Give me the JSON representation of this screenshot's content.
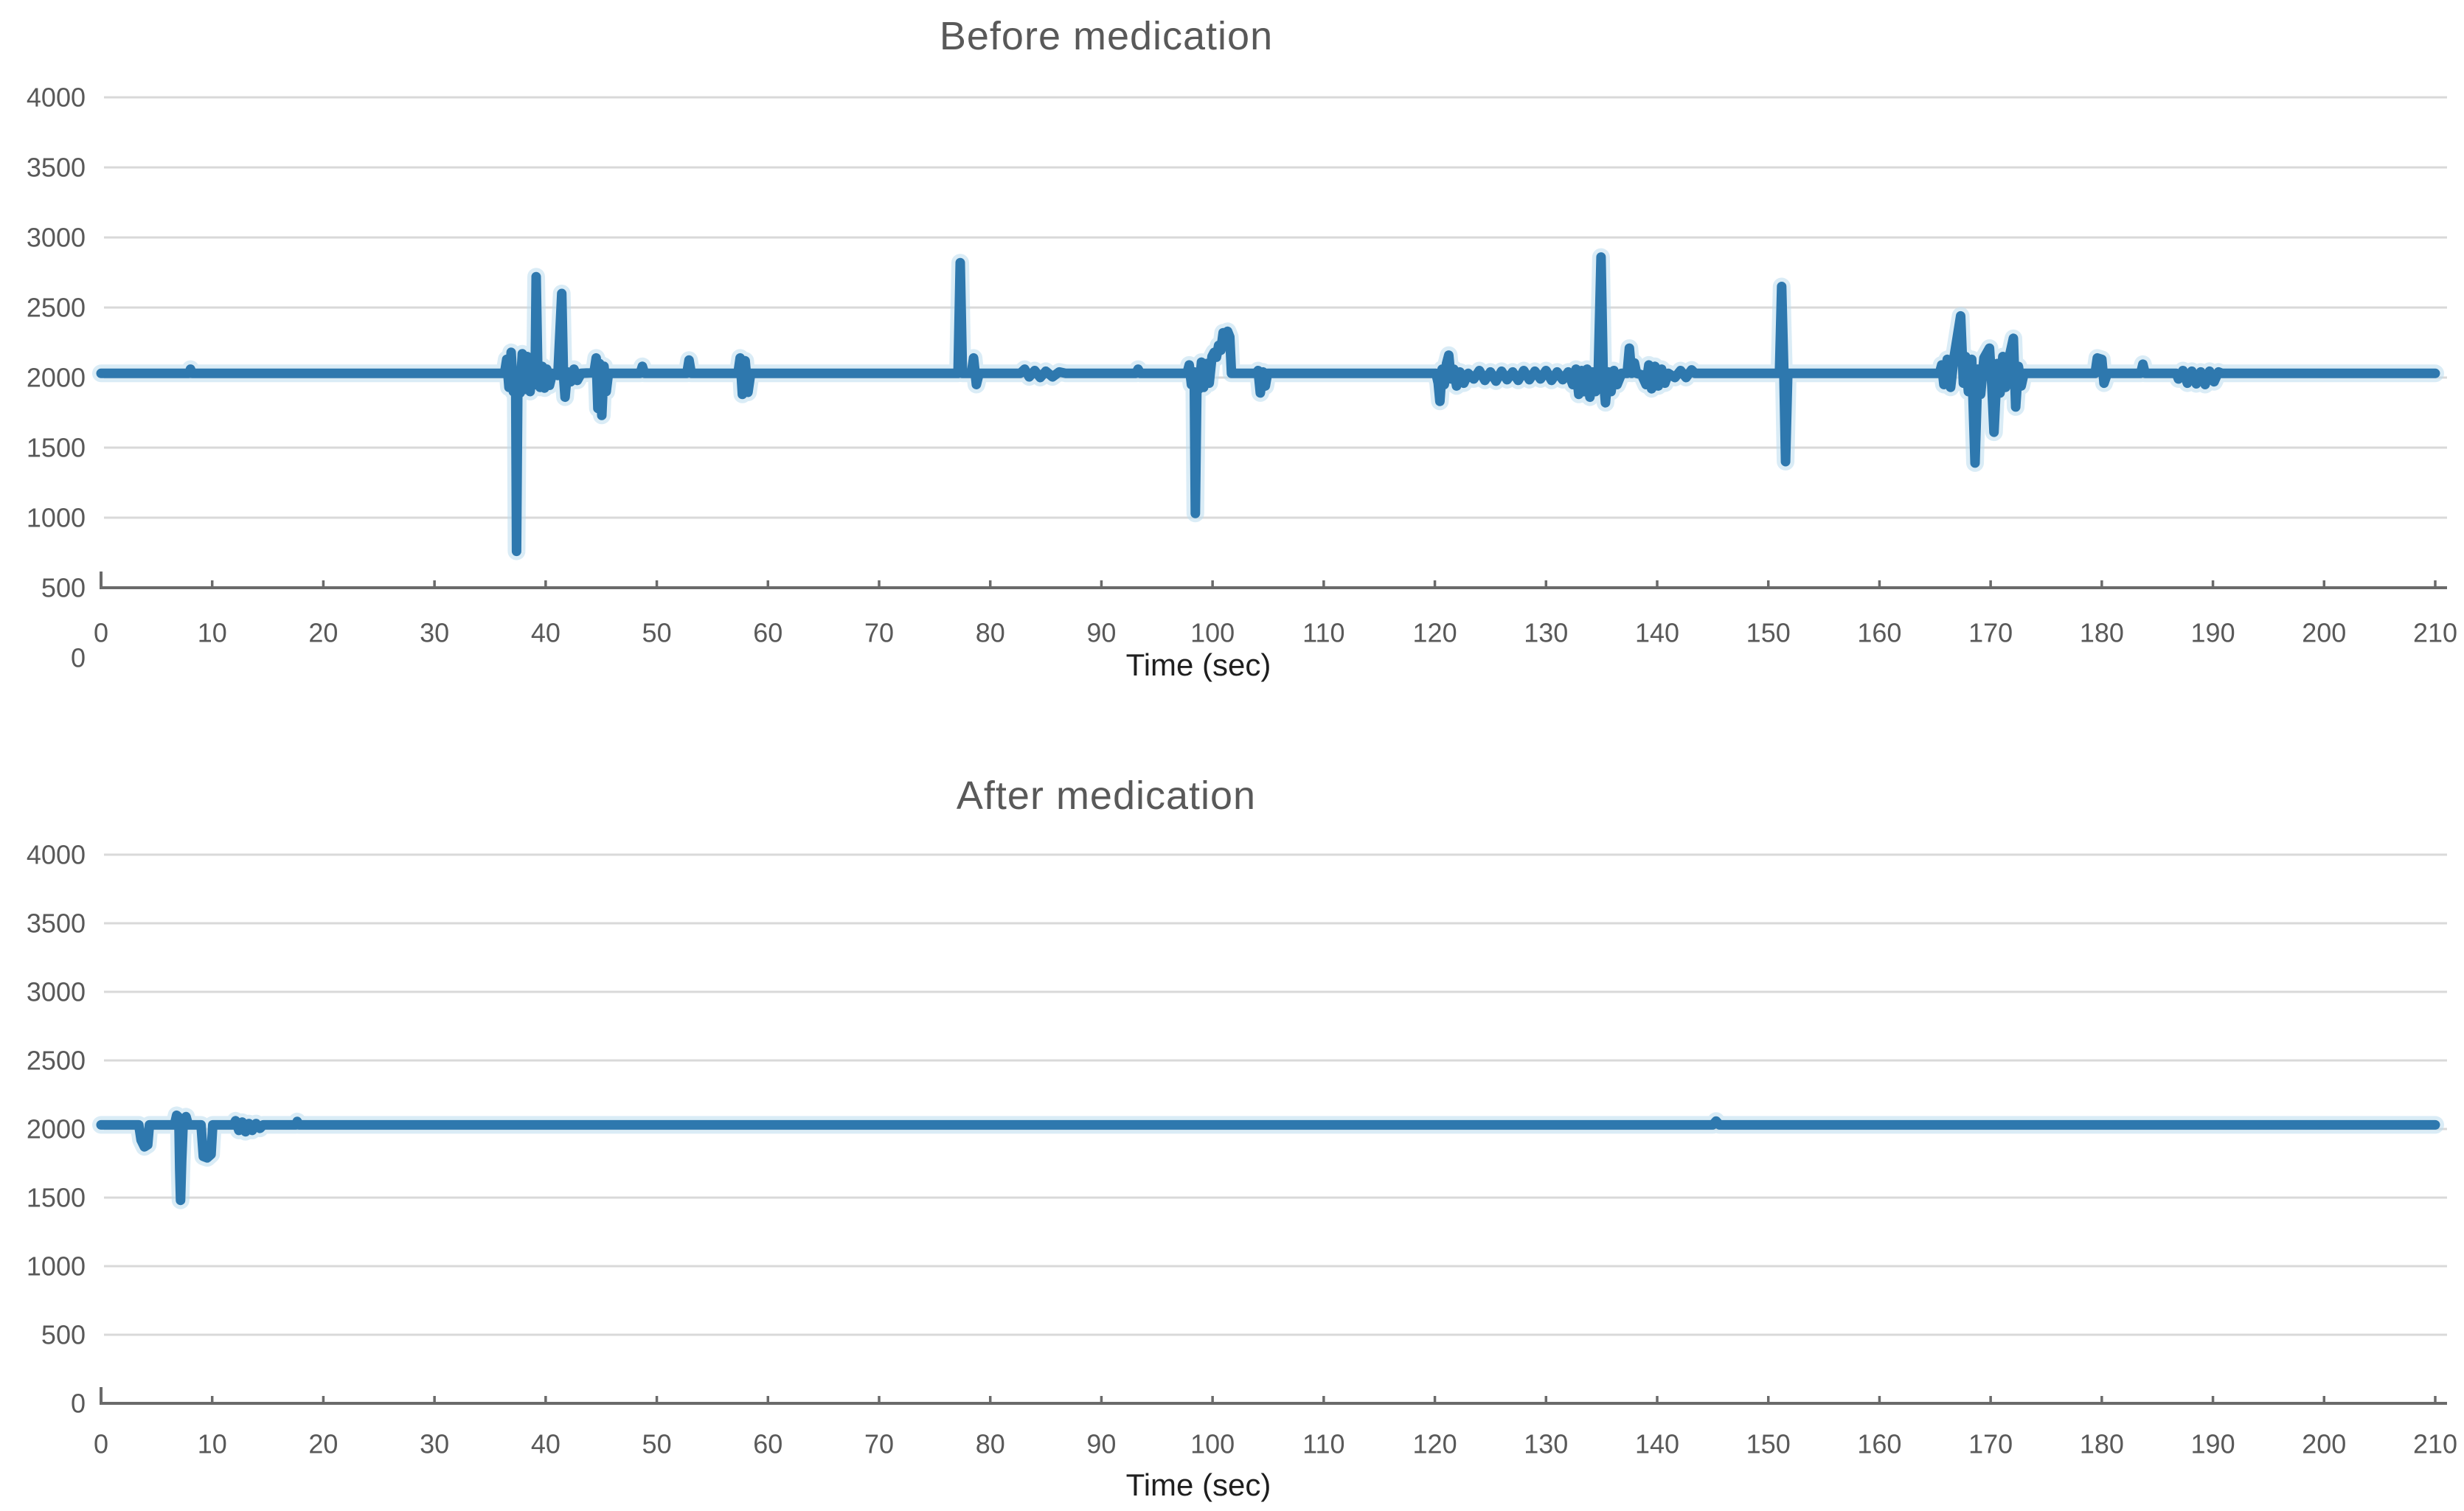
{
  "page": {
    "background": "#ffffff"
  },
  "styles": {
    "line_color": "#2e78ae",
    "line_halo_color": "#bcdcee",
    "gridline_color": "#d9d9d9",
    "axis_color": "#6a6a6a",
    "tick_label_color": "#595959",
    "title_color": "#595959",
    "time_label_color": "#1f1f1f"
  },
  "chart_data": [
    {
      "type": "line",
      "title": "Before medication",
      "xlabel": "Time (sec)",
      "ylabel": "",
      "xlim": [
        0,
        210
      ],
      "ylim": [
        0,
        4000
      ],
      "x_ticks": [
        0,
        10,
        20,
        30,
        40,
        50,
        60,
        70,
        80,
        90,
        100,
        110,
        120,
        130,
        140,
        150,
        160,
        170,
        180,
        190,
        200,
        210
      ],
      "y_ticks": [
        0,
        500,
        1000,
        1500,
        2000,
        2500,
        3000,
        3500,
        4000
      ],
      "axis_crosses_at": 500,
      "grid": true,
      "legend": "none",
      "baseline_value": 2030,
      "series": [
        {
          "name": "signal",
          "points": [
            [
              0,
              2030
            ],
            [
              7.9,
              2030
            ],
            [
              8.05,
              2060
            ],
            [
              8.2,
              2030
            ],
            [
              36.3,
              2030
            ],
            [
              36.5,
              2130
            ],
            [
              36.7,
              1930
            ],
            [
              36.9,
              2180
            ],
            [
              37.1,
              1900
            ],
            [
              37.3,
              2040
            ],
            [
              37.38,
              760
            ],
            [
              37.5,
              1990
            ],
            [
              37.7,
              1890
            ],
            [
              37.9,
              2170
            ],
            [
              38.1,
              1915
            ],
            [
              38.35,
              2150
            ],
            [
              38.6,
              1900
            ],
            [
              38.85,
              2120
            ],
            [
              39.05,
              1950
            ],
            [
              39.15,
              2720
            ],
            [
              39.3,
              2020
            ],
            [
              39.5,
              1930
            ],
            [
              39.7,
              2080
            ],
            [
              39.9,
              1925
            ],
            [
              40.1,
              2060
            ],
            [
              40.35,
              1945
            ],
            [
              40.6,
              2030
            ],
            [
              41.1,
              2015
            ],
            [
              41.45,
              2600
            ],
            [
              41.6,
              2020
            ],
            [
              41.75,
              1860
            ],
            [
              41.95,
              2040
            ],
            [
              42.25,
              1970
            ],
            [
              42.55,
              2060
            ],
            [
              42.85,
              1980
            ],
            [
              43.2,
              2030
            ],
            [
              44.35,
              2035
            ],
            [
              44.55,
              2140
            ],
            [
              44.7,
              1780
            ],
            [
              44.85,
              2100
            ],
            [
              45.05,
              1730
            ],
            [
              45.25,
              2080
            ],
            [
              45.45,
              1900
            ],
            [
              45.65,
              2030
            ],
            [
              48.5,
              2030
            ],
            [
              48.7,
              2080
            ],
            [
              48.9,
              2030
            ],
            [
              52.7,
              2030
            ],
            [
              52.9,
              2125
            ],
            [
              53.1,
              2030
            ],
            [
              57.3,
              2030
            ],
            [
              57.5,
              2140
            ],
            [
              57.7,
              1880
            ],
            [
              57.95,
              2120
            ],
            [
              58.2,
              1895
            ],
            [
              58.45,
              2030
            ],
            [
              77.1,
              2030
            ],
            [
              77.3,
              2820
            ],
            [
              77.5,
              2030
            ],
            [
              78.3,
              2030
            ],
            [
              78.5,
              2140
            ],
            [
              78.75,
              1950
            ],
            [
              79,
              2030
            ],
            [
              82.7,
              2030
            ],
            [
              83.1,
              2060
            ],
            [
              83.5,
              2005
            ],
            [
              84,
              2050
            ],
            [
              84.5,
              2000
            ],
            [
              85,
              2045
            ],
            [
              85.6,
              2005
            ],
            [
              86.2,
              2040
            ],
            [
              86.8,
              2030
            ],
            [
              93.1,
              2030
            ],
            [
              93.3,
              2060
            ],
            [
              93.5,
              2030
            ],
            [
              97.7,
              2030
            ],
            [
              97.9,
              2090
            ],
            [
              98.1,
              1950
            ],
            [
              98.35,
              2040
            ],
            [
              98.45,
              1030
            ],
            [
              98.6,
              1990
            ],
            [
              98.8,
              1920
            ],
            [
              99,
              2110
            ],
            [
              99.2,
              1930
            ],
            [
              99.45,
              2100
            ],
            [
              99.7,
              1960
            ],
            [
              99.95,
              2150
            ],
            [
              100.15,
              2180
            ],
            [
              100.35,
              2145
            ],
            [
              100.55,
              2230
            ],
            [
              100.75,
              2195
            ],
            [
              100.95,
              2320
            ],
            [
              101.15,
              2280
            ],
            [
              101.35,
              2330
            ],
            [
              101.55,
              2290
            ],
            [
              101.7,
              2030
            ],
            [
              103.9,
              2030
            ],
            [
              104.1,
              2050
            ],
            [
              104.3,
              1890
            ],
            [
              104.55,
              2040
            ],
            [
              104.75,
              1940
            ],
            [
              104.95,
              2030
            ],
            [
              120.1,
              2030
            ],
            [
              120.3,
              1960
            ],
            [
              120.45,
              1830
            ],
            [
              120.65,
              2060
            ],
            [
              120.85,
              1950
            ],
            [
              121.05,
              2100
            ],
            [
              121.25,
              2160
            ],
            [
              121.45,
              1990
            ],
            [
              121.7,
              2060
            ],
            [
              121.95,
              1940
            ],
            [
              122.25,
              2040
            ],
            [
              122.6,
              1960
            ],
            [
              123,
              2030
            ],
            [
              123.5,
              1990
            ],
            [
              124,
              2050
            ],
            [
              124.5,
              1980
            ],
            [
              125,
              2040
            ],
            [
              125.5,
              1975
            ],
            [
              126,
              2045
            ],
            [
              126.5,
              1985
            ],
            [
              127,
              2040
            ],
            [
              127.5,
              1980
            ],
            [
              128,
              2050
            ],
            [
              128.5,
              1985
            ],
            [
              129,
              2045
            ],
            [
              129.5,
              1990
            ],
            [
              130,
              2050
            ],
            [
              130.5,
              1980
            ],
            [
              131,
              2040
            ],
            [
              131.5,
              1985
            ],
            [
              132,
              2040
            ],
            [
              132.4,
              1950
            ],
            [
              132.7,
              2060
            ],
            [
              132.95,
              1880
            ],
            [
              133.2,
              2050
            ],
            [
              133.45,
              1900
            ],
            [
              133.7,
              2060
            ],
            [
              133.95,
              1860
            ],
            [
              134.2,
              2040
            ],
            [
              134.45,
              1900
            ],
            [
              134.7,
              2040
            ],
            [
              134.95,
              2860
            ],
            [
              135.15,
              2000
            ],
            [
              135.35,
              1820
            ],
            [
              135.6,
              2040
            ],
            [
              135.85,
              1900
            ],
            [
              136.1,
              2050
            ],
            [
              136.4,
              1950
            ],
            [
              136.8,
              2030
            ],
            [
              137.3,
              2030
            ],
            [
              137.5,
              2210
            ],
            [
              137.7,
              2030
            ],
            [
              137.95,
              2105
            ],
            [
              138.15,
              2030
            ],
            [
              138.6,
              2020
            ],
            [
              139,
              1950
            ],
            [
              139.25,
              2090
            ],
            [
              139.5,
              1920
            ],
            [
              139.8,
              2080
            ],
            [
              140.1,
              1940
            ],
            [
              140.4,
              2060
            ],
            [
              140.7,
              1960
            ],
            [
              141,
              2030
            ],
            [
              141.6,
              2000
            ],
            [
              142.1,
              2050
            ],
            [
              142.6,
              2000
            ],
            [
              143.1,
              2055
            ],
            [
              143.4,
              2030
            ],
            [
              151,
              2030
            ],
            [
              151.2,
              2650
            ],
            [
              151.4,
              2030
            ],
            [
              151.55,
              1400
            ],
            [
              151.75,
              2030
            ],
            [
              165.4,
              2030
            ],
            [
              165.6,
              2090
            ],
            [
              165.8,
              1950
            ],
            [
              166.1,
              2130
            ],
            [
              166.4,
              1930
            ],
            [
              166.7,
              2140
            ],
            [
              167.3,
              2440
            ],
            [
              167.55,
              1960
            ],
            [
              167.75,
              2150
            ],
            [
              168,
              1900
            ],
            [
              168.3,
              2130
            ],
            [
              168.6,
              1390
            ],
            [
              168.85,
              2060
            ],
            [
              169.1,
              1880
            ],
            [
              169.4,
              2140
            ],
            [
              169.9,
              2210
            ],
            [
              170.1,
              1950
            ],
            [
              170.3,
              1610
            ],
            [
              170.6,
              2100
            ],
            [
              170.85,
              1890
            ],
            [
              171.1,
              2150
            ],
            [
              171.35,
              1930
            ],
            [
              171.6,
              2120
            ],
            [
              172.05,
              2280
            ],
            [
              172.25,
              1790
            ],
            [
              172.5,
              2080
            ],
            [
              172.75,
              1940
            ],
            [
              173,
              2030
            ],
            [
              179.4,
              2030
            ],
            [
              179.6,
              2140
            ],
            [
              180,
              2130
            ],
            [
              180.2,
              1960
            ],
            [
              180.5,
              2030
            ],
            [
              183.5,
              2030
            ],
            [
              183.7,
              2095
            ],
            [
              183.9,
              2030
            ],
            [
              186.7,
              2030
            ],
            [
              186.9,
              1990
            ],
            [
              187.3,
              2050
            ],
            [
              187.7,
              1960
            ],
            [
              188.1,
              2045
            ],
            [
              188.5,
              1955
            ],
            [
              188.9,
              2040
            ],
            [
              189.3,
              1950
            ],
            [
              189.7,
              2045
            ],
            [
              190.1,
              1970
            ],
            [
              190.5,
              2040
            ],
            [
              190.8,
              2030
            ],
            [
              210,
              2030
            ]
          ]
        }
      ]
    },
    {
      "type": "line",
      "title": "After medication",
      "xlabel": "Time (sec)",
      "ylabel": "",
      "xlim": [
        0,
        210
      ],
      "ylim": [
        0,
        4000
      ],
      "x_ticks": [
        0,
        10,
        20,
        30,
        40,
        50,
        60,
        70,
        80,
        90,
        100,
        110,
        120,
        130,
        140,
        150,
        160,
        170,
        180,
        190,
        200,
        210
      ],
      "y_ticks": [
        0,
        500,
        1000,
        1500,
        2000,
        2500,
        3000,
        3500,
        4000
      ],
      "axis_crosses_at": 0,
      "grid": true,
      "legend": "none",
      "baseline_value": 2030,
      "series": [
        {
          "name": "signal",
          "points": [
            [
              0,
              2030
            ],
            [
              3.4,
              2030
            ],
            [
              3.6,
              1920
            ],
            [
              3.9,
              1870
            ],
            [
              4.2,
              1885
            ],
            [
              4.35,
              2030
            ],
            [
              6.6,
              2030
            ],
            [
              6.8,
              2100
            ],
            [
              7,
              2085
            ],
            [
              7.08,
              1700
            ],
            [
              7.15,
              1480
            ],
            [
              7.25,
              1760
            ],
            [
              7.4,
              2060
            ],
            [
              7.65,
              2090
            ],
            [
              7.85,
              2030
            ],
            [
              9,
              2030
            ],
            [
              9.2,
              1800
            ],
            [
              9.55,
              1790
            ],
            [
              9.9,
              1815
            ],
            [
              10.05,
              2030
            ],
            [
              11.9,
              2030
            ],
            [
              12.1,
              2060
            ],
            [
              12.4,
              1990
            ],
            [
              12.7,
              2050
            ],
            [
              13,
              1980
            ],
            [
              13.3,
              2040
            ],
            [
              13.6,
              1990
            ],
            [
              13.95,
              2040
            ],
            [
              14.3,
              2005
            ],
            [
              14.6,
              2030
            ],
            [
              17.5,
              2030
            ],
            [
              17.65,
              2055
            ],
            [
              17.8,
              2030
            ],
            [
              145,
              2030
            ],
            [
              145.3,
              2058
            ],
            [
              145.6,
              2030
            ],
            [
              210,
              2030
            ]
          ]
        }
      ]
    }
  ]
}
